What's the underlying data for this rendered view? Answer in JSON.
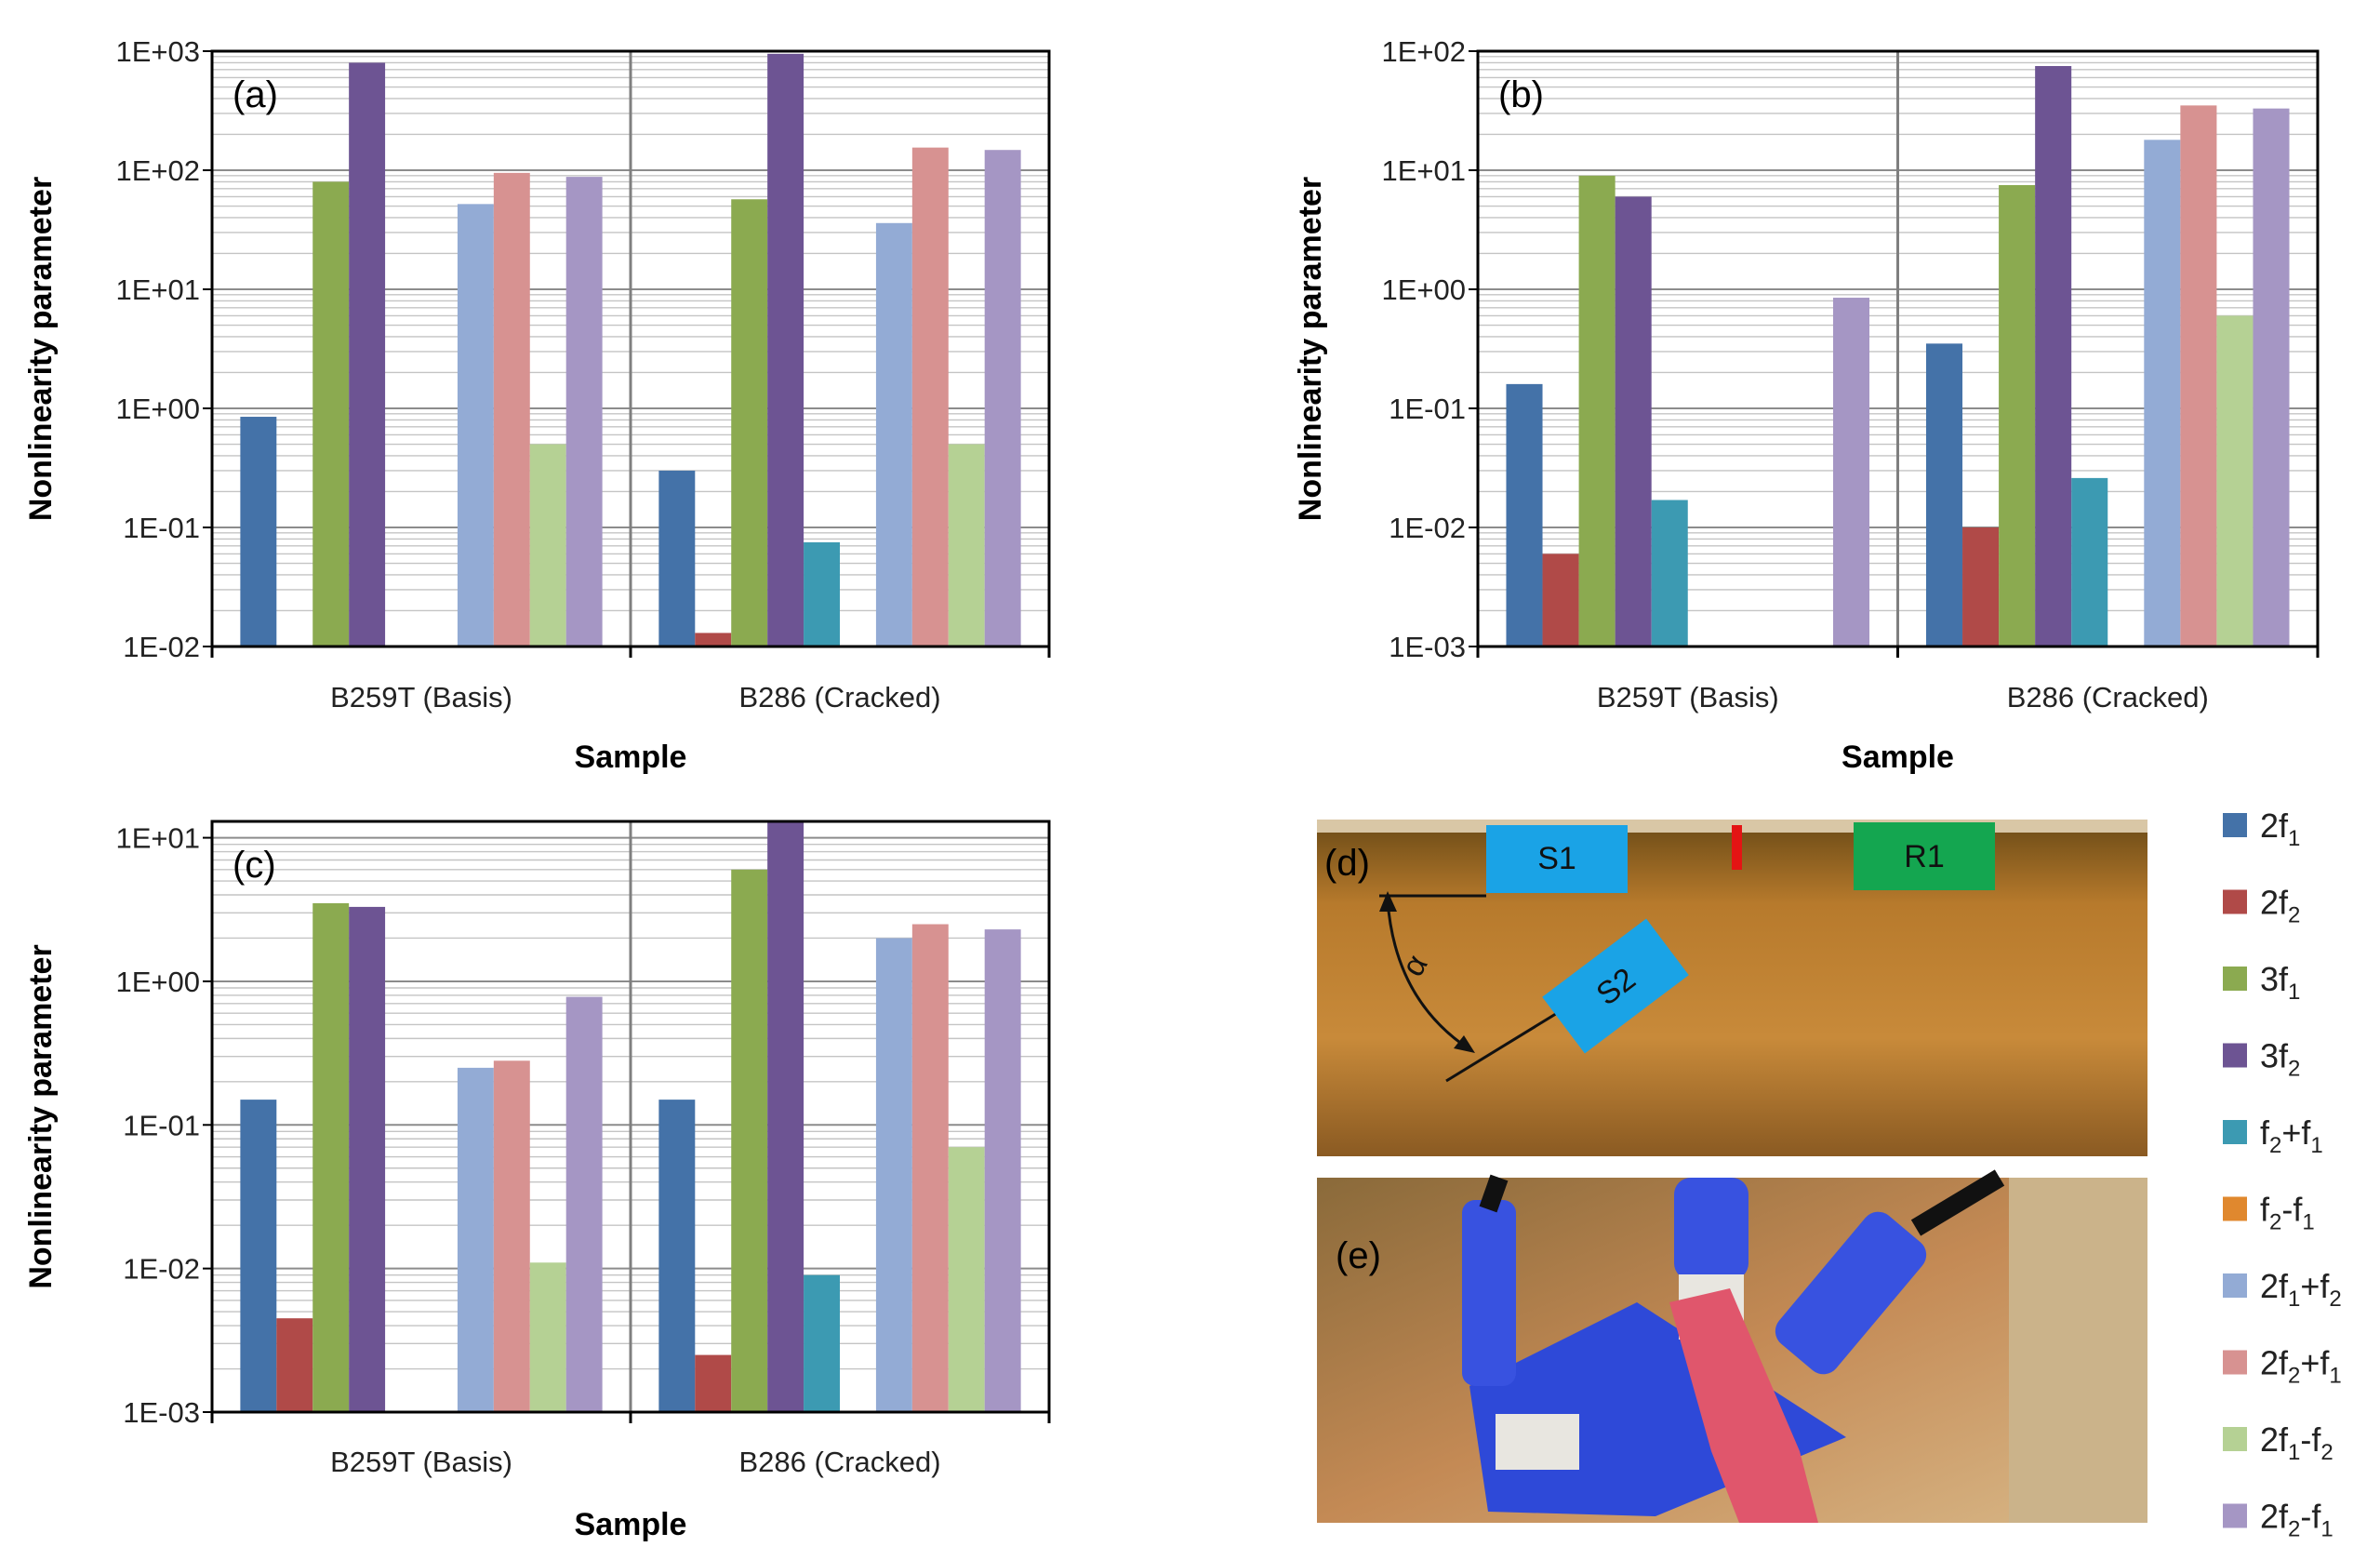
{
  "figure": {
    "series_order": [
      "2f1",
      "2f2",
      "3f1",
      "3f2",
      "f2+f1",
      "f2-f1",
      "2f1+f2",
      "2f2+f1",
      "2f1-f2",
      "2f2-f1"
    ],
    "series_colors": [
      "#4472A8",
      "#B04A48",
      "#8BAA50",
      "#6D5493",
      "#3C9AB2",
      "#E0882E",
      "#93ABD5",
      "#D79291",
      "#B5D194",
      "#A596C4"
    ],
    "legend": [
      {
        "base": "2f",
        "sub": "1",
        "tail": "",
        "tail_sub": ""
      },
      {
        "base": "2f",
        "sub": "2",
        "tail": "",
        "tail_sub": ""
      },
      {
        "base": "3f",
        "sub": "1",
        "tail": "",
        "tail_sub": ""
      },
      {
        "base": "3f",
        "sub": "2",
        "tail": "",
        "tail_sub": ""
      },
      {
        "base": "f",
        "sub": "2",
        "tail": "+f",
        "tail_sub": "1"
      },
      {
        "base": "f",
        "sub": "2",
        "tail": "-f",
        "tail_sub": "1"
      },
      {
        "base": "2f",
        "sub": "1",
        "tail": "+f",
        "tail_sub": "2"
      },
      {
        "base": "2f",
        "sub": "2",
        "tail": "+f",
        "tail_sub": "1"
      },
      {
        "base": "2f",
        "sub": "1",
        "tail": "-f",
        "tail_sub": "2"
      },
      {
        "base": "2f",
        "sub": "2",
        "tail": "-f",
        "tail_sub": "1"
      }
    ],
    "photos": {
      "d": {
        "panel_label": "(d)",
        "tags": [
          "S1",
          "R1",
          "S2"
        ],
        "angle_symbol": "α"
      },
      "e": {
        "panel_label": "(e)"
      }
    }
  },
  "chart_data": [
    {
      "type": "bar",
      "panel_label": "(a)",
      "scale": "log",
      "ylabel": "Nonlinearity parameter",
      "xlabel": "Sample",
      "ylim": [
        0.01,
        1000
      ],
      "yticks": [
        "1E-02",
        "1E-01",
        "1E+00",
        "1E+01",
        "1E+02",
        "1E+03"
      ],
      "categories": [
        "B259T (Basis)",
        "B286 (Cracked)"
      ],
      "series": [
        {
          "name": "2f1",
          "values": [
            0.85,
            0.3
          ]
        },
        {
          "name": "2f2",
          "values": [
            null,
            0.013
          ]
        },
        {
          "name": "3f1",
          "values": [
            80,
            57
          ]
        },
        {
          "name": "3f2",
          "values": [
            800,
            950
          ]
        },
        {
          "name": "f2+f1",
          "values": [
            null,
            0.075
          ]
        },
        {
          "name": "f2-f1",
          "values": [
            null,
            null
          ]
        },
        {
          "name": "2f1+f2",
          "values": [
            52,
            36
          ]
        },
        {
          "name": "2f2+f1",
          "values": [
            95,
            155
          ]
        },
        {
          "name": "2f1-f2",
          "values": [
            0.5,
            0.5
          ]
        },
        {
          "name": "2f2-f1",
          "values": [
            88,
            148
          ]
        }
      ]
    },
    {
      "type": "bar",
      "panel_label": "(b)",
      "scale": "log",
      "ylabel": "Nonlinearity parameter",
      "xlabel": "Sample",
      "ylim": [
        0.001,
        100
      ],
      "yticks": [
        "1E-03",
        "1E-02",
        "1E-01",
        "1E+00",
        "1E+01",
        "1E+02"
      ],
      "categories": [
        "B259T (Basis)",
        "B286 (Cracked)"
      ],
      "series": [
        {
          "name": "2f1",
          "values": [
            0.16,
            0.35
          ]
        },
        {
          "name": "2f2",
          "values": [
            0.006,
            0.01
          ]
        },
        {
          "name": "3f1",
          "values": [
            9,
            7.5
          ]
        },
        {
          "name": "3f2",
          "values": [
            6,
            75
          ]
        },
        {
          "name": "f2+f1",
          "values": [
            0.017,
            0.026
          ]
        },
        {
          "name": "f2-f1",
          "values": [
            null,
            null
          ]
        },
        {
          "name": "2f1+f2",
          "values": [
            null,
            18
          ]
        },
        {
          "name": "2f2+f1",
          "values": [
            null,
            35
          ]
        },
        {
          "name": "2f1-f2",
          "values": [
            null,
            0.6
          ]
        },
        {
          "name": "2f2-f1",
          "values": [
            0.85,
            33
          ]
        }
      ]
    },
    {
      "type": "bar",
      "panel_label": "(c)",
      "scale": "log",
      "ylabel": "Nonlinearity parameter",
      "xlabel": "Sample",
      "ylim": [
        0.001,
        13
      ],
      "yticks": [
        "1E-03",
        "1E-02",
        "1E-01",
        "1E+00",
        "1E+01"
      ],
      "categories": [
        "B259T (Basis)",
        "B286 (Cracked)"
      ],
      "series": [
        {
          "name": "2f1",
          "values": [
            0.15,
            0.15
          ]
        },
        {
          "name": "2f2",
          "values": [
            0.0045,
            0.0025
          ]
        },
        {
          "name": "3f1",
          "values": [
            3.5,
            6
          ]
        },
        {
          "name": "3f2",
          "values": [
            3.3,
            13
          ]
        },
        {
          "name": "f2+f1",
          "values": [
            null,
            0.009
          ]
        },
        {
          "name": "f2-f1",
          "values": [
            null,
            null
          ]
        },
        {
          "name": "2f1+f2",
          "values": [
            0.25,
            2
          ]
        },
        {
          "name": "2f2+f1",
          "values": [
            0.28,
            2.5
          ]
        },
        {
          "name": "2f1-f2",
          "values": [
            0.011,
            0.07
          ]
        },
        {
          "name": "2f2-f1",
          "values": [
            0.78,
            2.3
          ]
        }
      ]
    }
  ]
}
